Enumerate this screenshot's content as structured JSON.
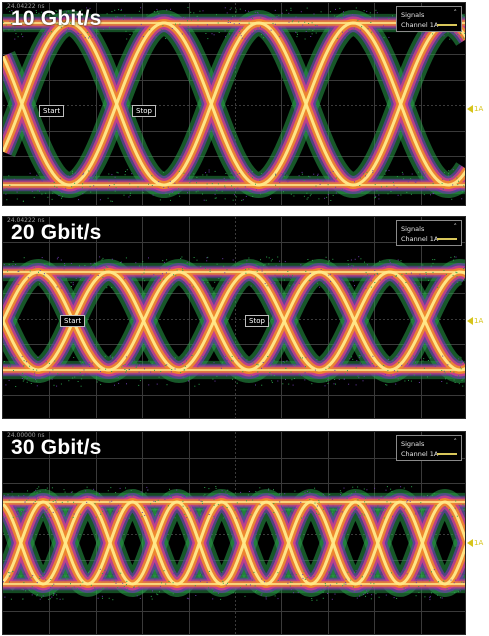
{
  "panels": [
    {
      "rate_label": "10 Gbit/s",
      "timestamp": "24.04222 ns",
      "legend": {
        "title": "Signals",
        "channel": "Channel 1A"
      },
      "channel_tag": "1A",
      "markers": {
        "start": "Start",
        "stop": "Stop"
      },
      "eye_cycles": 2.45,
      "eye_phase": 0.15
    },
    {
      "rate_label": "20 Gbit/s",
      "timestamp": "24.04222 ns",
      "legend": {
        "title": "Signals",
        "channel": "Channel 1A"
      },
      "channel_tag": "1A",
      "markers": {
        "start": "Start",
        "stop": "Stop"
      },
      "eye_cycles": 3.3,
      "eye_phase": 0.25
    },
    {
      "rate_label": "30 Gbit/s",
      "timestamp": "24.00000 ns",
      "legend": {
        "title": "Signals",
        "channel": "Channel 1A"
      },
      "channel_tag": "1A",
      "eye_cycles": 5.2,
      "eye_phase": 0.05
    }
  ],
  "colors": {
    "background": "#000000",
    "grid": "#3a3a3a",
    "hot": "#ffe98a",
    "warm": "#f08a2a",
    "mid": "#d0408a",
    "cool": "#6a3aa8",
    "noise": "#2aa04a",
    "channel": "#d6c41a"
  }
}
